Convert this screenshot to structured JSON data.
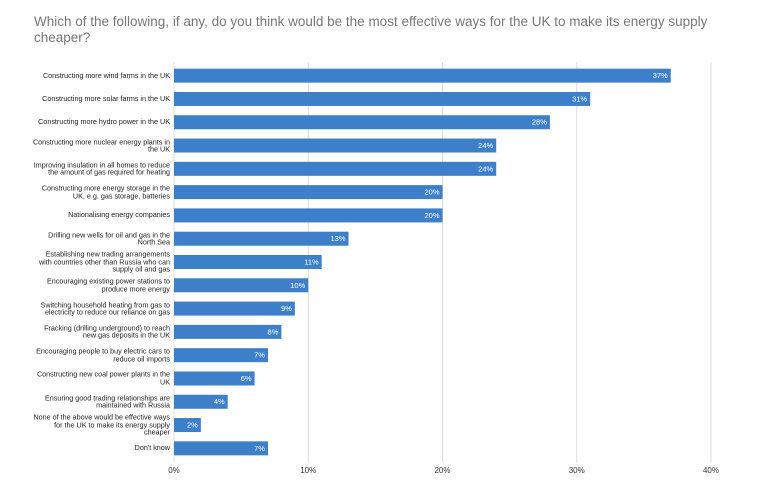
{
  "chart_data": {
    "type": "bar",
    "orientation": "horizontal",
    "title": "Which of the following, if any, do you think would be the most effective ways for the UK to make its energy supply cheaper?",
    "categories": [
      "Constructing more wind farms in the UK",
      "Constructing more solar farms in the UK",
      "Constructing more hydro power in the UK",
      "Constructing more nuclear energy plants in the UK",
      "Improving insulation in all homes to reduce the amount of gas required for heating",
      "Constructing more energy storage in the UK, e.g. gas storage, batteries",
      "Nationalising energy companies",
      "Drilling new wells for oil and gas in the North Sea",
      "Establishing new trading arrangements with countries other than Russia who can supply oil and gas",
      "Encouraging existing power stations to produce more energy",
      "Switching household heating from gas to electricity to reduce our reliance on gas",
      "Fracking (drilling underground) to reach new gas deposits in the UK",
      "Encouraging people to buy electric cars to reduce oil imports",
      "Constructing new coal power plants in the UK",
      "Ensuring good trading relationships are maintained with Russia",
      "None of the above would be effective ways for the UK to make its energy supply cheaper",
      "Don't know"
    ],
    "values": [
      37,
      31,
      28,
      24,
      24,
      20,
      20,
      13,
      11,
      10,
      9,
      8,
      7,
      6,
      4,
      2,
      7
    ],
    "value_labels": [
      "37%",
      "31%",
      "28%",
      "24%",
      "24%",
      "20%",
      "20%",
      "13%",
      "11%",
      "10%",
      "9%",
      "8%",
      "7%",
      "6%",
      "4%",
      "2%",
      "7%"
    ],
    "color": "#3d7fc9",
    "xlim": [
      0,
      40
    ],
    "xticks": [
      {
        "value": 0,
        "label": "0%"
      },
      {
        "value": 10,
        "label": "10%"
      },
      {
        "value": 20,
        "label": "20%"
      },
      {
        "value": 30,
        "label": "30%"
      },
      {
        "value": 40,
        "label": "40%"
      }
    ],
    "grid": true
  }
}
